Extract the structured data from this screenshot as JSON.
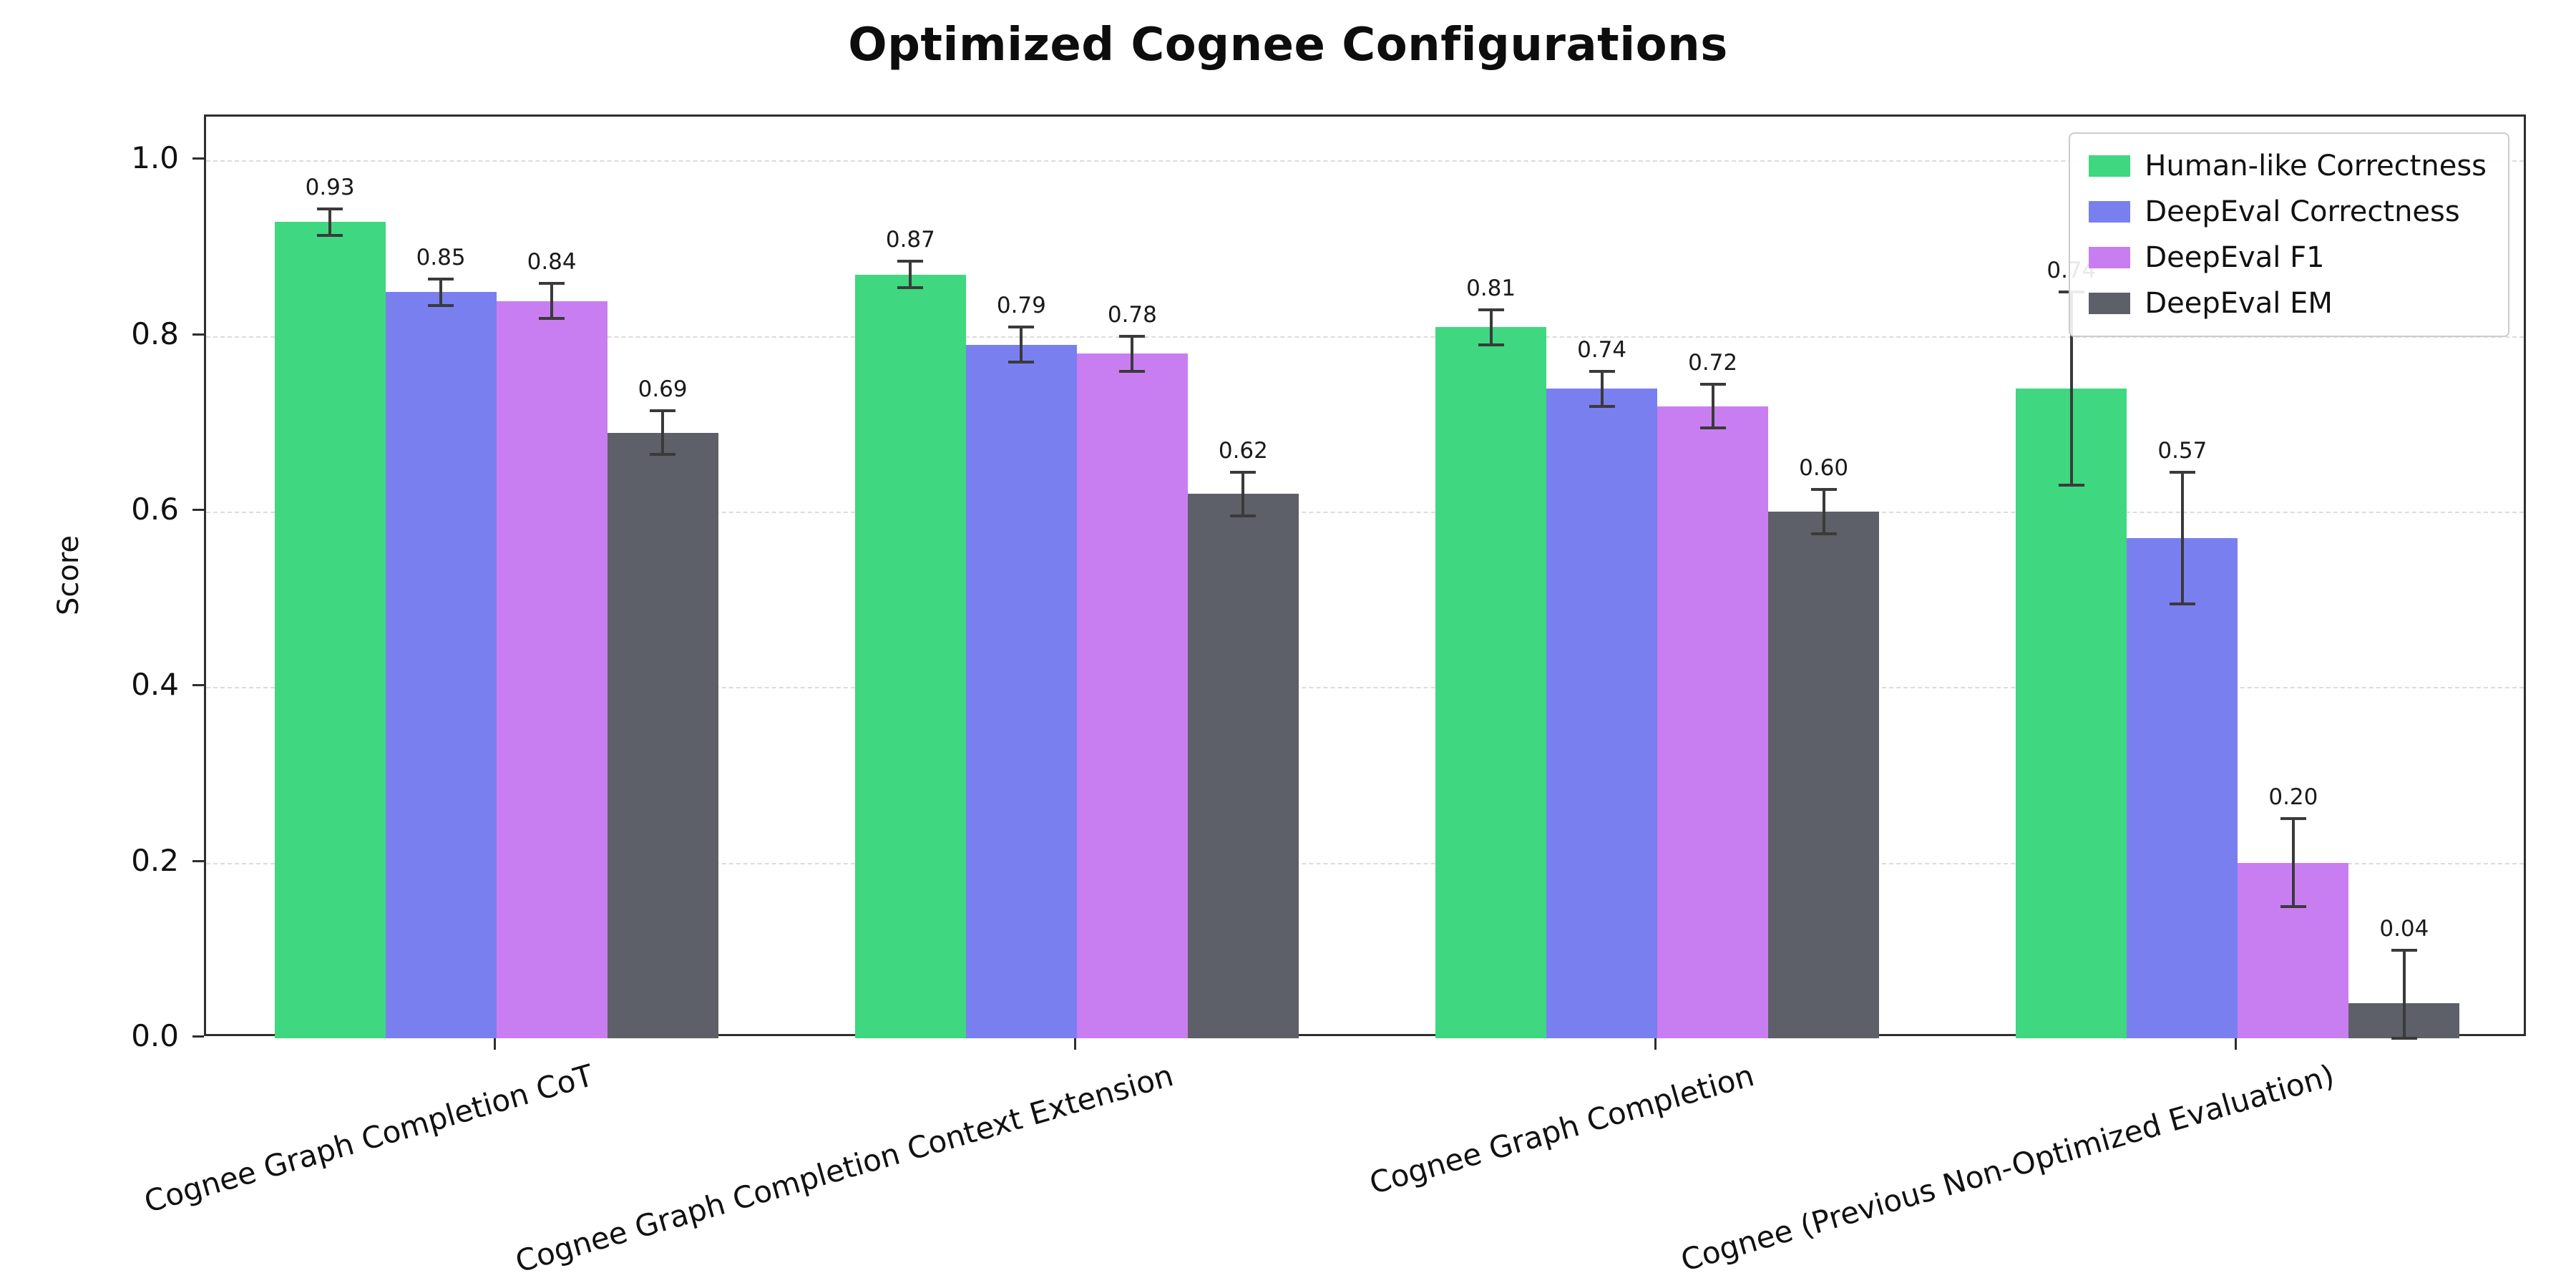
{
  "chart_data": {
    "type": "bar",
    "title": "Optimized Cognee Configurations",
    "xlabel": "",
    "ylabel": "Score",
    "ylim": [
      0,
      1.05
    ],
    "yticks": [
      0.0,
      0.2,
      0.4,
      0.6,
      0.8,
      1.0
    ],
    "grid": "horizontal-dashed",
    "legend_position": "upper-right",
    "categories": [
      "Cognee Graph Completion CoT",
      "Cognee Graph Completion Context Extension",
      "Cognee Graph Completion",
      "Cognee (Previous Non-Optimized Evaluation)"
    ],
    "series": [
      {
        "name": "Human-like Correctness",
        "color": "#3fd77f",
        "values": [
          0.93,
          0.87,
          0.81,
          0.74
        ],
        "errors": [
          0.015,
          0.015,
          0.02,
          0.11
        ]
      },
      {
        "name": "DeepEval Correctness",
        "color": "#7a7ff0",
        "values": [
          0.85,
          0.79,
          0.74,
          0.57
        ],
        "errors": [
          0.015,
          0.02,
          0.02,
          0.075
        ]
      },
      {
        "name": "DeepEval F1",
        "color": "#c87ef0",
        "values": [
          0.84,
          0.78,
          0.72,
          0.2
        ],
        "errors": [
          0.02,
          0.02,
          0.025,
          0.05
        ]
      },
      {
        "name": "DeepEval EM",
        "color": "#5d6068",
        "values": [
          0.69,
          0.62,
          0.6,
          0.04
        ],
        "errors": [
          0.025,
          0.025,
          0.025,
          0.06
        ]
      }
    ],
    "value_label_format": "2-decimals",
    "errorbar_color": "#3a3a3a"
  }
}
